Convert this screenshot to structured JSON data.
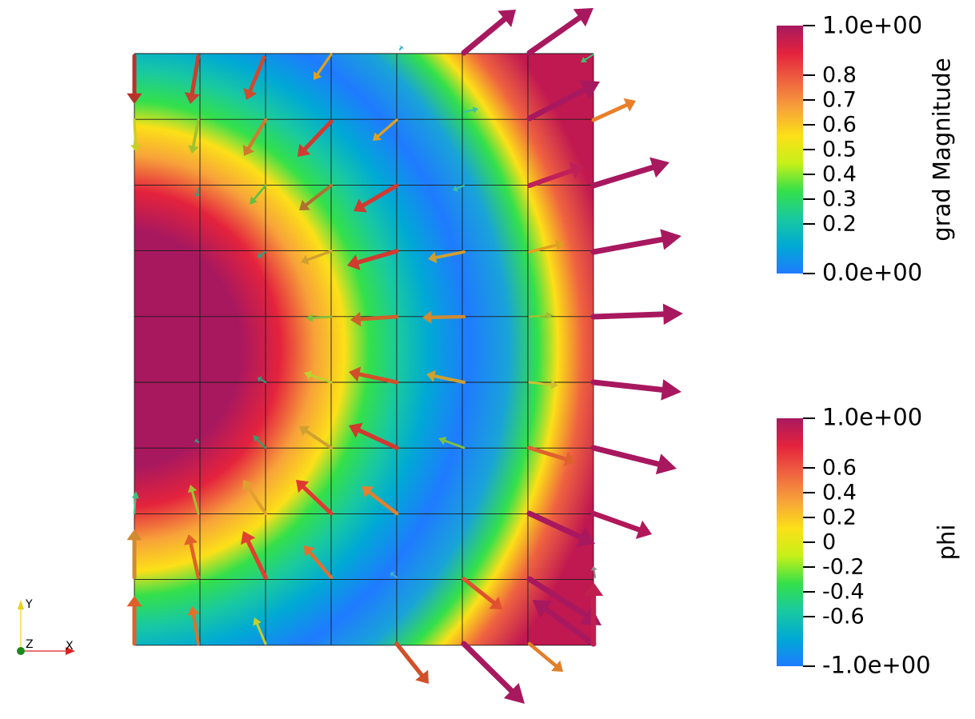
{
  "scalar_bars": [
    {
      "title": "grad Magnitude",
      "min_label": "0.0e+00",
      "max_label": "1.0e+00",
      "ticks": [
        {
          "value": 0.8,
          "label": "0.8"
        },
        {
          "value": 0.7,
          "label": "0.7"
        },
        {
          "value": 0.6,
          "label": "0.6"
        },
        {
          "value": 0.5,
          "label": "0.5"
        },
        {
          "value": 0.4,
          "label": "0.4"
        },
        {
          "value": 0.3,
          "label": "0.3"
        },
        {
          "value": 0.2,
          "label": "0.2"
        }
      ]
    },
    {
      "title": "phi",
      "min_label": "-1.0e+00",
      "max_label": "1.0e+00",
      "ticks": [
        {
          "value": 0.6,
          "label": "0.6"
        },
        {
          "value": 0.4,
          "label": "0.4"
        },
        {
          "value": 0.2,
          "label": "0.2"
        },
        {
          "value": 0,
          "label": "0"
        },
        {
          "value": -0.2,
          "label": "-0.2"
        },
        {
          "value": -0.4,
          "label": "-0.4"
        },
        {
          "value": -0.6,
          "label": "-0.6"
        }
      ]
    }
  ],
  "orientation_axes": {
    "x": "X",
    "y": "Y",
    "z": "Z"
  },
  "colormap": [
    "#1f7bff",
    "#00a9d4",
    "#19c9a0",
    "#34e04a",
    "#c6f019",
    "#fce018",
    "#f7a23a",
    "#ef6340",
    "#e4233d",
    "#a8185f"
  ]
}
